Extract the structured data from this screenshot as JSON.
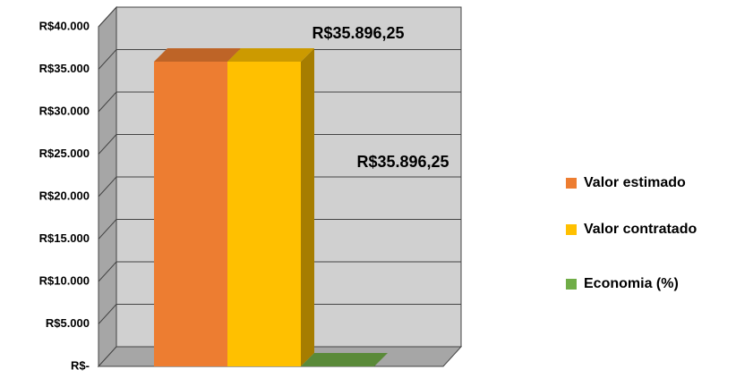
{
  "chart_data": {
    "type": "bar3d",
    "categories": [
      null
    ],
    "series": [
      {
        "name": "Valor estimado",
        "color": "#ED7D31",
        "values": [
          35896.25
        ],
        "value_labels": [
          "R$35.896,25"
        ]
      },
      {
        "name": "Valor contratado",
        "color": "#FFC000",
        "values": [
          35896.25
        ],
        "value_labels": [
          "R$35.896,25"
        ]
      },
      {
        "name": "Economia (%)",
        "color": "#70AD47",
        "values": [
          0
        ]
      }
    ],
    "ylim": [
      0,
      40000
    ],
    "yticks": [
      {
        "value": 0,
        "label": "R$-"
      },
      {
        "value": 5000,
        "label": "R$5.000"
      },
      {
        "value": 10000,
        "label": "R$10.000"
      },
      {
        "value": 15000,
        "label": "R$15.000"
      },
      {
        "value": 20000,
        "label": "R$20.000"
      },
      {
        "value": 25000,
        "label": "R$25.000"
      },
      {
        "value": 30000,
        "label": "R$30.000"
      },
      {
        "value": 35000,
        "label": "R$35.000"
      },
      {
        "value": 40000,
        "label": "R$40.000"
      }
    ],
    "grid": true,
    "legend": "right"
  }
}
